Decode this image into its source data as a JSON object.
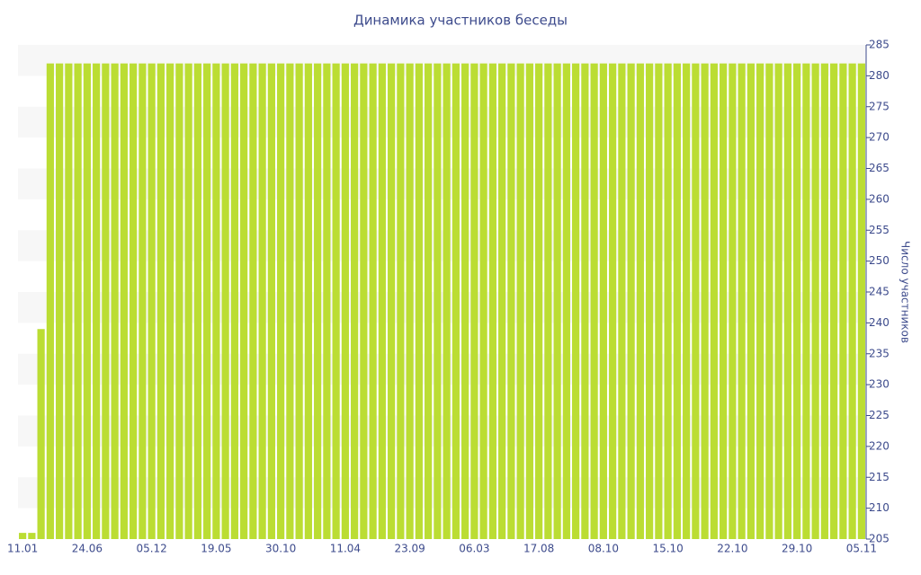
{
  "chart_data": {
    "type": "bar",
    "title": "Динамика участников беседы",
    "y_label": "Число участников",
    "categories": [
      "11.01",
      null,
      null,
      null,
      null,
      null,
      null,
      "24.06",
      null,
      null,
      null,
      null,
      null,
      null,
      "05.12",
      null,
      null,
      null,
      null,
      null,
      null,
      "19.05",
      null,
      null,
      null,
      null,
      null,
      null,
      "30.10",
      null,
      null,
      null,
      null,
      null,
      null,
      "11.04",
      null,
      null,
      null,
      null,
      null,
      null,
      "23.09",
      null,
      null,
      null,
      null,
      null,
      null,
      "06.03",
      null,
      null,
      null,
      null,
      null,
      null,
      "17.08",
      null,
      null,
      null,
      null,
      null,
      null,
      "08.10",
      null,
      null,
      null,
      null,
      null,
      null,
      "15.10",
      null,
      null,
      null,
      null,
      null,
      null,
      "22.10",
      null,
      null,
      null,
      null,
      null,
      null,
      "29.10",
      null,
      null,
      null,
      null,
      null,
      null,
      "05.11"
    ],
    "values": [
      206,
      206,
      239,
      282,
      282,
      282,
      282,
      282,
      282,
      282,
      282,
      282,
      282,
      282,
      282,
      282,
      282,
      282,
      282,
      282,
      282,
      282,
      282,
      282,
      282,
      282,
      282,
      282,
      282,
      282,
      282,
      282,
      282,
      282,
      282,
      282,
      282,
      282,
      282,
      282,
      282,
      282,
      282,
      282,
      282,
      282,
      282,
      282,
      282,
      282,
      282,
      282,
      282,
      282,
      282,
      282,
      282,
      282,
      282,
      282,
      282,
      282,
      282,
      282,
      282,
      282,
      282,
      282,
      282,
      282,
      282,
      282,
      282,
      282,
      282,
      282,
      282,
      282,
      282,
      282,
      282,
      282,
      282,
      282,
      282,
      282,
      282,
      282,
      282,
      282,
      282,
      282
    ],
    "color": "#bbdd33",
    "ylim": [
      205,
      285
    ],
    "yticks": [
      205,
      210,
      215,
      220,
      225,
      230,
      235,
      240,
      245,
      250,
      255,
      260,
      265,
      270,
      275,
      280,
      285
    ],
    "grid": true
  }
}
